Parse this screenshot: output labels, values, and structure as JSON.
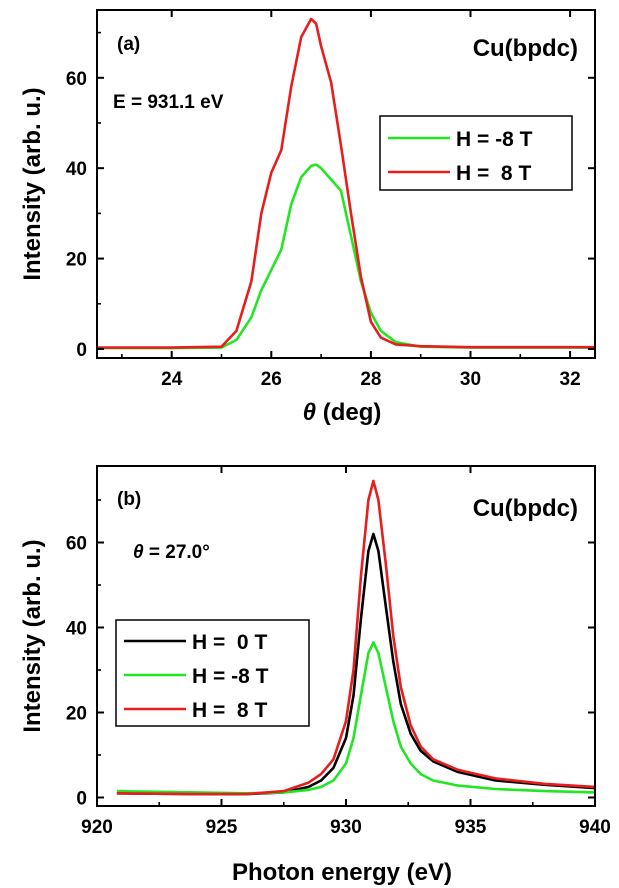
{
  "chart_data": [
    {
      "type": "line",
      "panel_label": "(a)",
      "material_label": "Cu(bpdc)",
      "annotation": {
        "prefix": "",
        "text": "E = 931.1 eV"
      },
      "xlabel": {
        "symbol": "θ",
        "text": " (deg)"
      },
      "ylabel": "Intensity (arb. u.)",
      "xlim": [
        22.5,
        32.5
      ],
      "ylim": [
        -2,
        75
      ],
      "xticks": [
        24,
        26,
        28,
        30,
        32
      ],
      "yticks": [
        0,
        20,
        40,
        60
      ],
      "legend_position": "top-right",
      "series": [
        {
          "name": "H = -8 T",
          "color": "#22e622",
          "x": [
            22.5,
            24.0,
            25.0,
            25.3,
            25.6,
            25.8,
            26.0,
            26.2,
            26.4,
            26.6,
            26.8,
            26.9,
            27.0,
            27.2,
            27.4,
            27.6,
            27.8,
            28.0,
            28.2,
            28.5,
            29.0,
            30.0,
            31.0,
            32.5
          ],
          "y": [
            0.2,
            0.2,
            0.3,
            2.0,
            7.0,
            13.0,
            17.5,
            22.0,
            32.0,
            38.0,
            40.5,
            40.8,
            40.0,
            37.5,
            35.0,
            25.0,
            15.0,
            8.0,
            4.0,
            1.5,
            0.5,
            0.3,
            0.3,
            0.3
          ]
        },
        {
          "name": "H =  8 T",
          "color": "#e61e1e",
          "x": [
            22.5,
            24.0,
            25.0,
            25.3,
            25.6,
            25.8,
            26.0,
            26.2,
            26.4,
            26.6,
            26.8,
            26.9,
            27.0,
            27.2,
            27.4,
            27.6,
            27.8,
            28.0,
            28.2,
            28.5,
            29.0,
            30.0,
            31.0,
            32.5
          ],
          "y": [
            0.3,
            0.3,
            0.5,
            4.0,
            15.0,
            30.0,
            39.0,
            44.0,
            58.0,
            69.0,
            73.0,
            72.0,
            67.0,
            59.0,
            45.0,
            30.0,
            16.0,
            6.0,
            2.5,
            1.0,
            0.6,
            0.4,
            0.4,
            0.4
          ]
        }
      ]
    },
    {
      "type": "line",
      "panel_label": "(b)",
      "material_label": "Cu(bpdc)",
      "annotation": {
        "prefix": "θ",
        "text": " = 27.0°"
      },
      "xlabel": {
        "symbol": "",
        "text": "Photon energy (eV)"
      },
      "ylabel": "Intensity (arb. u.)",
      "xlim": [
        920,
        940
      ],
      "ylim": [
        -2,
        78
      ],
      "xticks": [
        920,
        925,
        930,
        935,
        940
      ],
      "yticks": [
        0,
        20,
        40,
        60
      ],
      "legend_position": "bottom-left",
      "series": [
        {
          "name": "H =  0 T",
          "color": "#000000",
          "x": [
            920.8,
            924.0,
            926.0,
            927.5,
            928.5,
            929.0,
            929.5,
            930.0,
            930.3,
            930.6,
            930.9,
            931.1,
            931.3,
            931.6,
            931.9,
            932.2,
            932.6,
            933.0,
            933.5,
            934.5,
            936.0,
            938.0,
            940.0
          ],
          "y": [
            1.0,
            0.8,
            0.8,
            1.2,
            2.5,
            4.0,
            7.0,
            14.0,
            24.0,
            42.0,
            58.0,
            62.0,
            58.0,
            45.0,
            32.0,
            22.0,
            15.0,
            11.0,
            8.5,
            6.0,
            4.0,
            3.0,
            2.2
          ]
        },
        {
          "name": "H = -8 T",
          "color": "#22e622",
          "x": [
            920.8,
            924.0,
            926.0,
            927.5,
            928.5,
            929.0,
            929.5,
            930.0,
            930.3,
            930.6,
            930.9,
            931.1,
            931.3,
            931.6,
            931.9,
            932.2,
            932.6,
            933.0,
            933.5,
            934.5,
            936.0,
            938.0,
            940.0
          ],
          "y": [
            1.5,
            1.2,
            1.0,
            1.2,
            1.8,
            2.5,
            4.0,
            8.0,
            14.0,
            24.0,
            34.0,
            36.5,
            34.0,
            26.0,
            18.0,
            12.0,
            8.0,
            5.5,
            4.0,
            2.8,
            2.0,
            1.5,
            1.2
          ]
        },
        {
          "name": "H =  8 T",
          "color": "#e61e1e",
          "x": [
            920.8,
            924.0,
            926.0,
            927.5,
            928.5,
            929.0,
            929.5,
            930.0,
            930.3,
            930.6,
            930.9,
            931.1,
            931.3,
            931.6,
            931.9,
            932.2,
            932.6,
            933.0,
            933.5,
            934.5,
            936.0,
            938.0,
            940.0
          ],
          "y": [
            1.0,
            0.8,
            0.8,
            1.5,
            3.5,
            5.5,
            9.0,
            18.0,
            30.0,
            52.0,
            70.0,
            74.5,
            70.0,
            55.0,
            38.0,
            26.0,
            17.0,
            12.0,
            9.0,
            6.5,
            4.5,
            3.2,
            2.5
          ]
        }
      ]
    }
  ]
}
